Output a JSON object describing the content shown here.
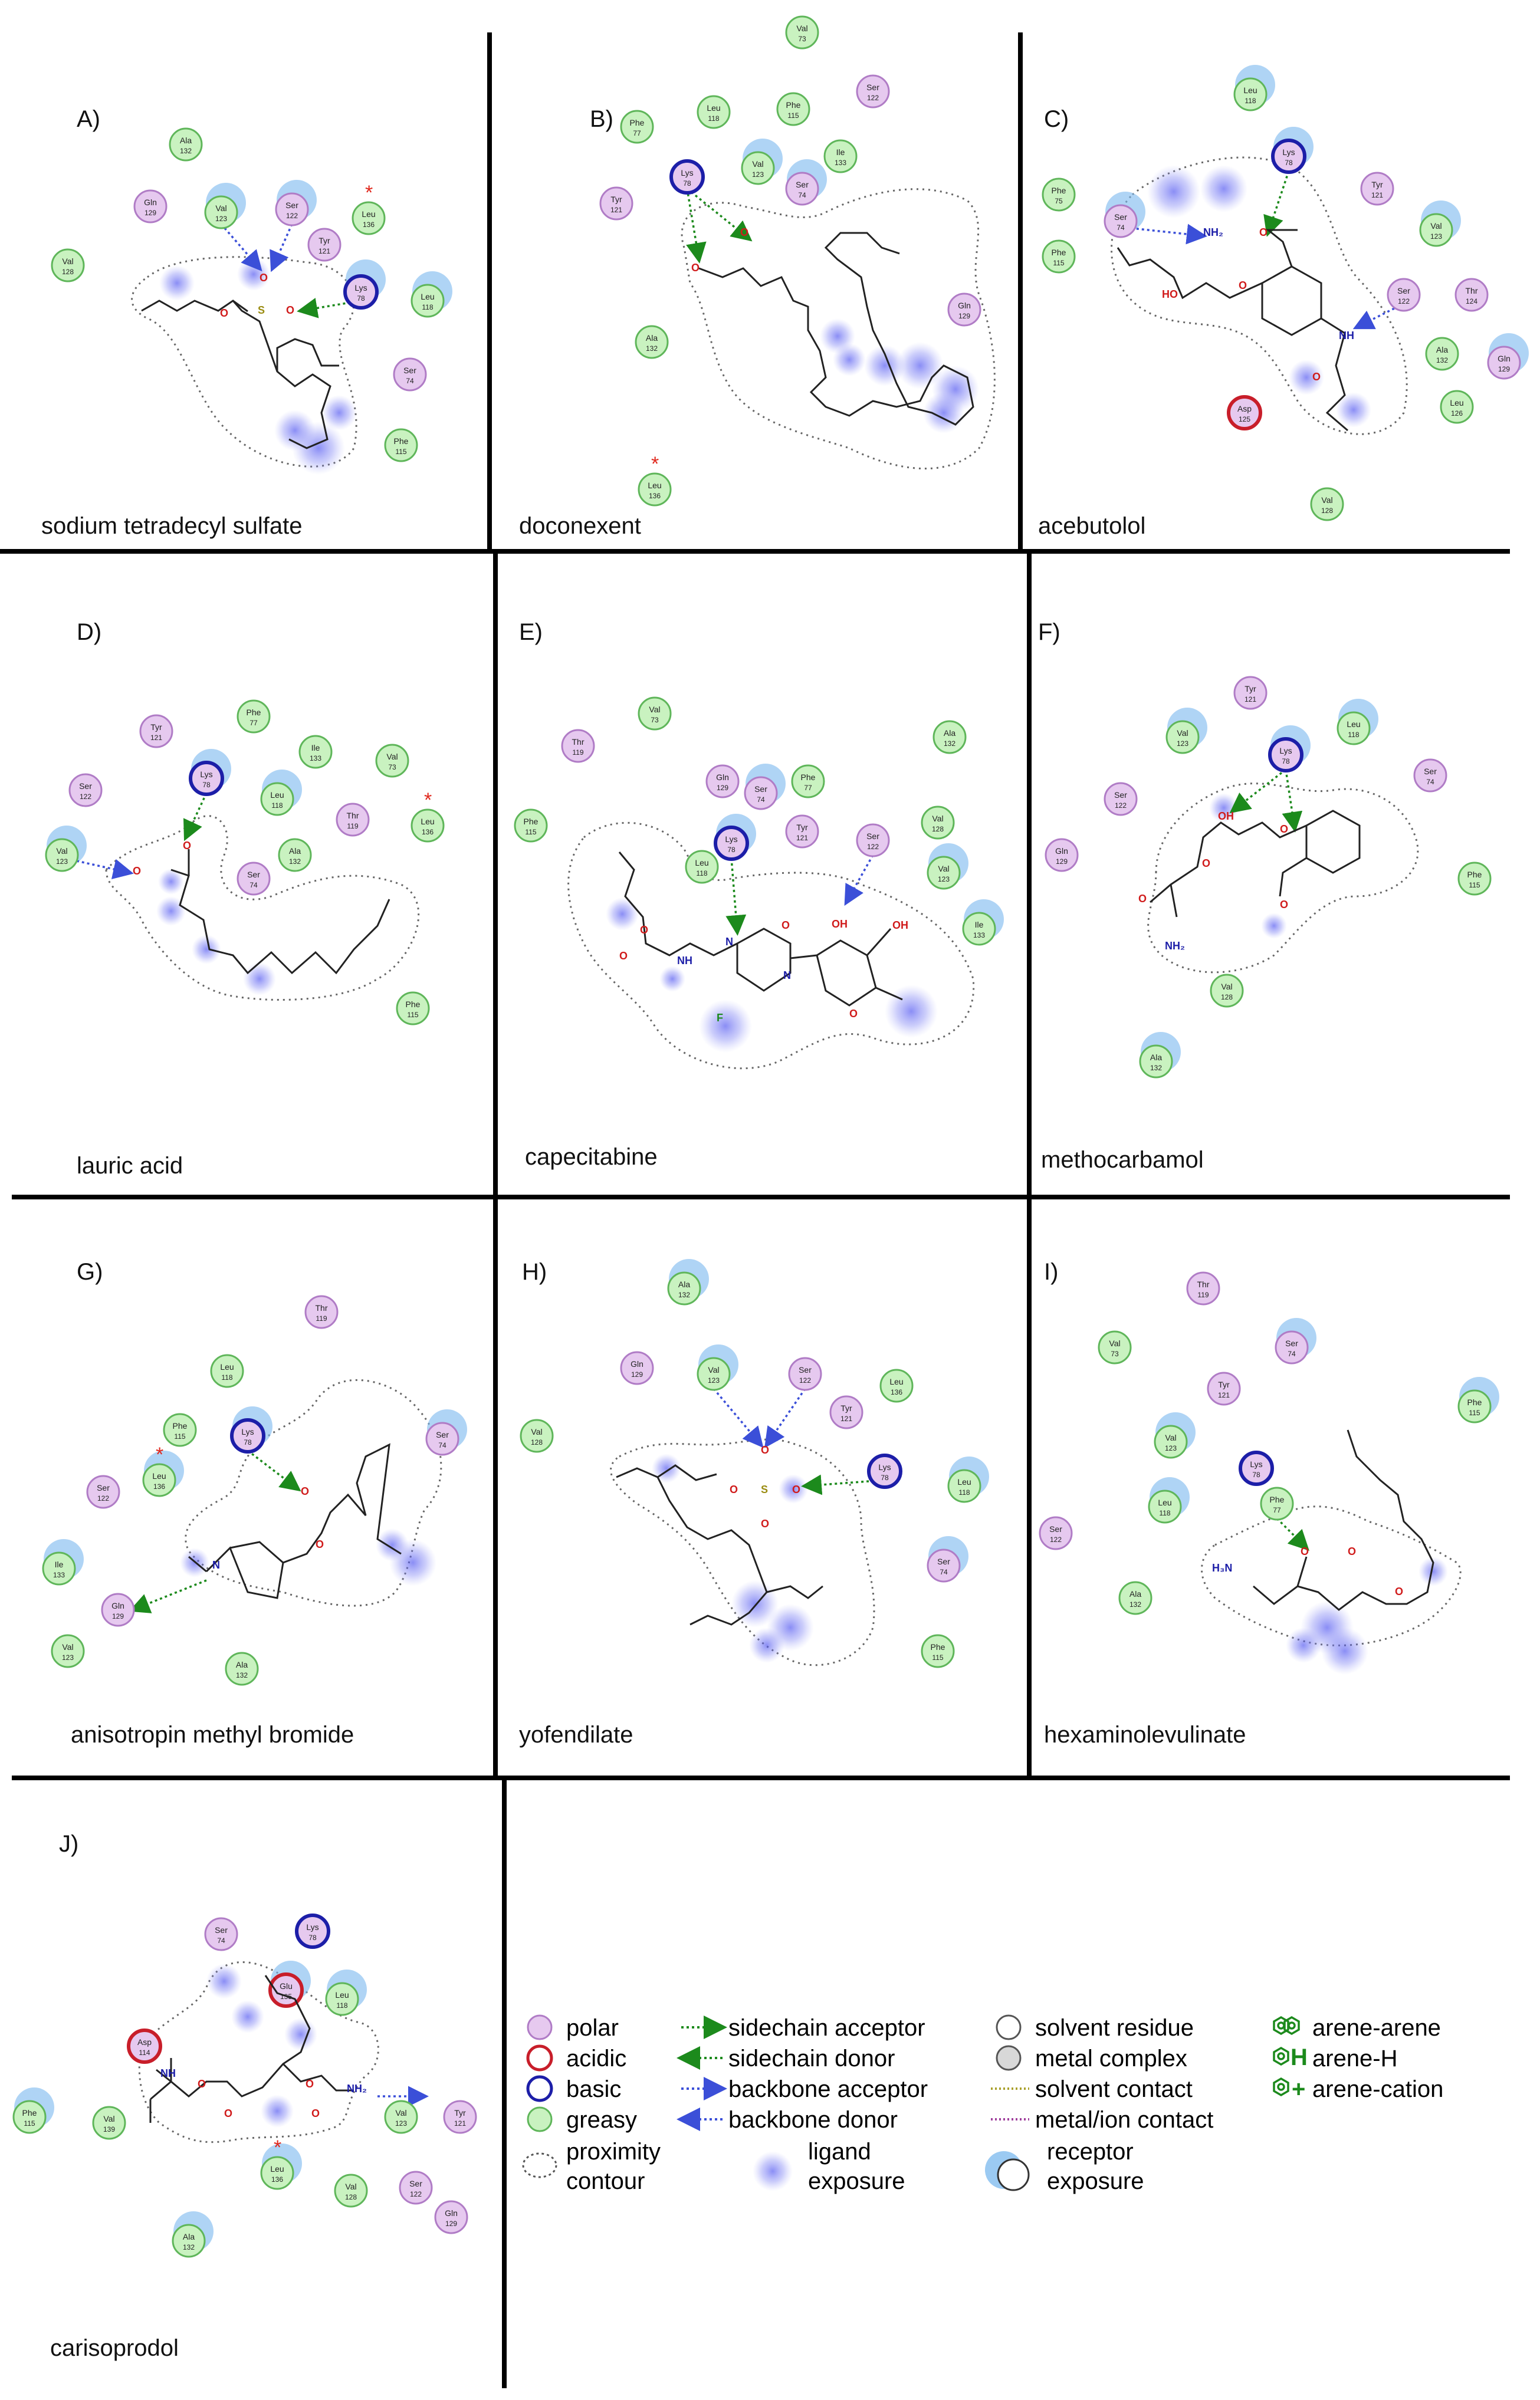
{
  "panels": [
    {
      "letter": "A)",
      "name": "sodium tetradecyl sulfate",
      "residues": [
        {
          "label": "Ala",
          "num": "132",
          "type": "greasy"
        },
        {
          "label": "Gln",
          "num": "129",
          "type": "polar"
        },
        {
          "label": "Val",
          "num": "123",
          "type": "greasy"
        },
        {
          "label": "Ser",
          "num": "122",
          "type": "polar"
        },
        {
          "label": "Tyr",
          "num": "121",
          "type": "polar"
        },
        {
          "label": "Leu",
          "num": "136",
          "type": "greasy",
          "star": true
        },
        {
          "label": "Val",
          "num": "128",
          "type": "greasy"
        },
        {
          "label": "Lys",
          "num": "78",
          "type": "basic"
        },
        {
          "label": "Leu",
          "num": "118",
          "type": "greasy"
        },
        {
          "label": "Ser",
          "num": "74",
          "type": "polar"
        },
        {
          "label": "Phe",
          "num": "115",
          "type": "greasy"
        }
      ]
    },
    {
      "letter": "B)",
      "name": "doconexent",
      "residues": [
        {
          "label": "Val",
          "num": "73",
          "type": "greasy"
        },
        {
          "label": "Phe",
          "num": "77",
          "type": "greasy"
        },
        {
          "label": "Leu",
          "num": "118",
          "type": "greasy"
        },
        {
          "label": "Phe",
          "num": "115",
          "type": "greasy"
        },
        {
          "label": "Ser",
          "num": "122",
          "type": "polar"
        },
        {
          "label": "Val",
          "num": "123",
          "type": "greasy"
        },
        {
          "label": "Ile",
          "num": "133",
          "type": "greasy"
        },
        {
          "label": "Ser",
          "num": "74",
          "type": "polar"
        },
        {
          "label": "Tyr",
          "num": "121",
          "type": "polar"
        },
        {
          "label": "Lys",
          "num": "78",
          "type": "basic"
        },
        {
          "label": "Gln",
          "num": "129",
          "type": "polar"
        },
        {
          "label": "Ala",
          "num": "132",
          "type": "greasy"
        },
        {
          "label": "Leu",
          "num": "136",
          "type": "greasy",
          "star": true
        }
      ]
    },
    {
      "letter": "C)",
      "name": "acebutolol",
      "residues": [
        {
          "label": "Leu",
          "num": "118",
          "type": "greasy"
        },
        {
          "label": "Lys",
          "num": "78",
          "type": "basic"
        },
        {
          "label": "Phe",
          "num": "75",
          "type": "greasy"
        },
        {
          "label": "Tyr",
          "num": "121",
          "type": "polar"
        },
        {
          "label": "Ser",
          "num": "74",
          "type": "polar"
        },
        {
          "label": "Val",
          "num": "123",
          "type": "greasy"
        },
        {
          "label": "Phe",
          "num": "115",
          "type": "greasy"
        },
        {
          "label": "Ser",
          "num": "122",
          "type": "polar"
        },
        {
          "label": "Thr",
          "num": "124",
          "type": "polar"
        },
        {
          "label": "Ala",
          "num": "132",
          "type": "greasy"
        },
        {
          "label": "Gln",
          "num": "129",
          "type": "polar"
        },
        {
          "label": "Leu",
          "num": "126",
          "type": "greasy"
        },
        {
          "label": "Asp",
          "num": "125",
          "type": "acidic"
        },
        {
          "label": "Val",
          "num": "128",
          "type": "greasy"
        }
      ]
    },
    {
      "letter": "D)",
      "name": "lauric acid",
      "residues": [
        {
          "label": "Tyr",
          "num": "121",
          "type": "polar"
        },
        {
          "label": "Phe",
          "num": "77",
          "type": "greasy"
        },
        {
          "label": "Ile",
          "num": "133",
          "type": "greasy"
        },
        {
          "label": "Val",
          "num": "73",
          "type": "greasy"
        },
        {
          "label": "Ser",
          "num": "122",
          "type": "polar"
        },
        {
          "label": "Lys",
          "num": "78",
          "type": "basic"
        },
        {
          "label": "Leu",
          "num": "118",
          "type": "greasy"
        },
        {
          "label": "Thr",
          "num": "119",
          "type": "polar"
        },
        {
          "label": "Leu",
          "num": "136",
          "type": "greasy",
          "star": true
        },
        {
          "label": "Val",
          "num": "123",
          "type": "greasy"
        },
        {
          "label": "Ser",
          "num": "74",
          "type": "polar"
        },
        {
          "label": "Ala",
          "num": "132",
          "type": "greasy"
        },
        {
          "label": "Phe",
          "num": "115",
          "type": "greasy"
        }
      ]
    },
    {
      "letter": "E)",
      "name": "capecitabine",
      "residues": [
        {
          "label": "Val",
          "num": "73",
          "type": "greasy"
        },
        {
          "label": "Thr",
          "num": "119",
          "type": "polar"
        },
        {
          "label": "Ala",
          "num": "132",
          "type": "greasy"
        },
        {
          "label": "Gln",
          "num": "129",
          "type": "polar"
        },
        {
          "label": "Ser",
          "num": "74",
          "type": "polar"
        },
        {
          "label": "Phe",
          "num": "77",
          "type": "greasy"
        },
        {
          "label": "Phe",
          "num": "115",
          "type": "greasy"
        },
        {
          "label": "Lys",
          "num": "78",
          "type": "basic"
        },
        {
          "label": "Tyr",
          "num": "121",
          "type": "polar"
        },
        {
          "label": "Ser",
          "num": "122",
          "type": "polar"
        },
        {
          "label": "Val",
          "num": "128",
          "type": "greasy"
        },
        {
          "label": "Leu",
          "num": "118",
          "type": "greasy"
        },
        {
          "label": "Val",
          "num": "123",
          "type": "greasy"
        },
        {
          "label": "Ile",
          "num": "133",
          "type": "greasy"
        }
      ]
    },
    {
      "letter": "F)",
      "name": "methocarbamol",
      "residues": [
        {
          "label": "Tyr",
          "num": "121",
          "type": "polar"
        },
        {
          "label": "Val",
          "num": "123",
          "type": "greasy"
        },
        {
          "label": "Leu",
          "num": "118",
          "type": "greasy"
        },
        {
          "label": "Lys",
          "num": "78",
          "type": "basic"
        },
        {
          "label": "Ser",
          "num": "74",
          "type": "polar"
        },
        {
          "label": "Ser",
          "num": "122",
          "type": "polar"
        },
        {
          "label": "Gln",
          "num": "129",
          "type": "polar"
        },
        {
          "label": "Phe",
          "num": "115",
          "type": "greasy"
        },
        {
          "label": "Val",
          "num": "128",
          "type": "greasy"
        },
        {
          "label": "Ala",
          "num": "132",
          "type": "greasy"
        }
      ]
    },
    {
      "letter": "G)",
      "name": "anisotropin methyl bromide",
      "residues": [
        {
          "label": "Thr",
          "num": "119",
          "type": "polar"
        },
        {
          "label": "Leu",
          "num": "118",
          "type": "greasy"
        },
        {
          "label": "Phe",
          "num": "115",
          "type": "greasy"
        },
        {
          "label": "Lys",
          "num": "78",
          "type": "basic"
        },
        {
          "label": "Ser",
          "num": "74",
          "type": "polar"
        },
        {
          "label": "Leu",
          "num": "136",
          "type": "greasy",
          "star": true
        },
        {
          "label": "Ser",
          "num": "122",
          "type": "polar"
        },
        {
          "label": "Ile",
          "num": "133",
          "type": "greasy"
        },
        {
          "label": "Gln",
          "num": "129",
          "type": "polar"
        },
        {
          "label": "Val",
          "num": "123",
          "type": "greasy"
        },
        {
          "label": "Ala",
          "num": "132",
          "type": "greasy"
        }
      ]
    },
    {
      "letter": "H)",
      "name": "yofendilate",
      "residues": [
        {
          "label": "Ala",
          "num": "132",
          "type": "greasy"
        },
        {
          "label": "Gln",
          "num": "129",
          "type": "polar"
        },
        {
          "label": "Val",
          "num": "123",
          "type": "greasy"
        },
        {
          "label": "Ser",
          "num": "122",
          "type": "polar"
        },
        {
          "label": "Leu",
          "num": "136",
          "type": "greasy"
        },
        {
          "label": "Tyr",
          "num": "121",
          "type": "polar"
        },
        {
          "label": "Val",
          "num": "128",
          "type": "greasy"
        },
        {
          "label": "Lys",
          "num": "78",
          "type": "basic"
        },
        {
          "label": "Leu",
          "num": "118",
          "type": "greasy"
        },
        {
          "label": "Ser",
          "num": "74",
          "type": "polar"
        },
        {
          "label": "Phe",
          "num": "115",
          "type": "greasy"
        }
      ]
    },
    {
      "letter": "I)",
      "name": "hexaminolevulinate",
      "residues": [
        {
          "label": "Thr",
          "num": "119",
          "type": "polar"
        },
        {
          "label": "Val",
          "num": "73",
          "type": "greasy"
        },
        {
          "label": "Ser",
          "num": "74",
          "type": "polar"
        },
        {
          "label": "Tyr",
          "num": "121",
          "type": "polar"
        },
        {
          "label": "Phe",
          "num": "115",
          "type": "greasy"
        },
        {
          "label": "Val",
          "num": "123",
          "type": "greasy"
        },
        {
          "label": "Lys",
          "num": "78",
          "type": "basic"
        },
        {
          "label": "Leu",
          "num": "118",
          "type": "greasy"
        },
        {
          "label": "Phe",
          "num": "77",
          "type": "greasy"
        },
        {
          "label": "Ser",
          "num": "122",
          "type": "polar"
        },
        {
          "label": "Ala",
          "num": "132",
          "type": "greasy"
        }
      ]
    },
    {
      "letter": "J)",
      "name": "carisoprodol",
      "residues": [
        {
          "label": "Ser",
          "num": "74",
          "type": "polar"
        },
        {
          "label": "Lys",
          "num": "78",
          "type": "basic"
        },
        {
          "label": "Asp",
          "num": "114",
          "type": "acidic"
        },
        {
          "label": "Glu",
          "num": "135",
          "type": "acidic"
        },
        {
          "label": "Leu",
          "num": "118",
          "type": "greasy"
        },
        {
          "label": "Phe",
          "num": "115",
          "type": "greasy"
        },
        {
          "label": "Val",
          "num": "139",
          "type": "greasy"
        },
        {
          "label": "Val",
          "num": "123",
          "type": "greasy"
        },
        {
          "label": "Tyr",
          "num": "121",
          "type": "polar"
        },
        {
          "label": "Ser",
          "num": "122",
          "type": "polar"
        },
        {
          "label": "Leu",
          "num": "136",
          "type": "greasy",
          "star": true
        },
        {
          "label": "Val",
          "num": "128",
          "type": "greasy"
        },
        {
          "label": "Gln",
          "num": "129",
          "type": "polar"
        },
        {
          "label": "Ala",
          "num": "132",
          "type": "greasy"
        }
      ]
    }
  ],
  "atoms": {
    "O": "O",
    "OH": "OH",
    "HO": "HO",
    "NH": "NH",
    "NH2": "NH₂",
    "N": "N",
    "H": "H",
    "NH3": "H₃N",
    "plus": "+",
    "S": "S",
    "F": "F",
    "Nplus": "N"
  },
  "legend": {
    "residue_types": [
      {
        "key": "polar",
        "label": "polar"
      },
      {
        "key": "acidic",
        "label": "acidic"
      },
      {
        "key": "basic",
        "label": "basic"
      },
      {
        "key": "greasy",
        "label": "greasy"
      }
    ],
    "proximity_label_1": "proximity",
    "proximity_label_2": "contour",
    "interactions": [
      "sidechain acceptor",
      "sidechain donor",
      "backbone acceptor",
      "backbone donor"
    ],
    "ligand_exposure_1": "ligand",
    "ligand_exposure_2": "exposure",
    "misc": [
      "solvent residue",
      "metal complex",
      "solvent contact",
      "metal/ion contact"
    ],
    "receptor_exposure_1": "receptor",
    "receptor_exposure_2": "exposure",
    "arene": [
      "arene-arene",
      "arene-H",
      "arene-cation"
    ],
    "arene_h_glyph": "H",
    "arene_cation_glyph": "+"
  },
  "colors": {
    "polar": "#e6c9ef",
    "polar_stroke": "#b07cc6",
    "acidic_stroke": "#c81e2a",
    "basic_stroke": "#1c1ea8",
    "greasy": "#c9f2c0",
    "greasy_stroke": "#5fb65a",
    "green_arrow": "#1c8a1c",
    "blue_arrow": "#3b4fd8",
    "exposure": "#6f74f2",
    "receptor_exposure": "#7ab8ee",
    "star": "#e0281d"
  }
}
